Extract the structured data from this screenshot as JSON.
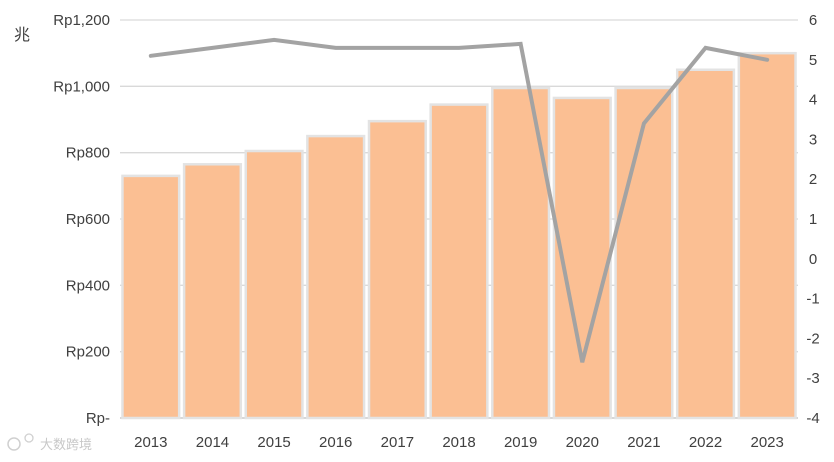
{
  "chart_data": {
    "type": "bar+line",
    "categories": [
      "2013",
      "2014",
      "2015",
      "2016",
      "2017",
      "2018",
      "2019",
      "2020",
      "2021",
      "2022",
      "2023"
    ],
    "series": [
      {
        "type": "bar",
        "axis": "left",
        "color": "#fbbf93",
        "values": [
          730,
          765,
          805,
          850,
          895,
          945,
          995,
          965,
          995,
          1050,
          1100
        ]
      },
      {
        "type": "line",
        "axis": "right",
        "color": "#a3a3a3",
        "values": [
          5.1,
          5.3,
          5.5,
          5.3,
          5.3,
          5.3,
          5.4,
          -2.6,
          3.4,
          5.3,
          5.0
        ]
      }
    ],
    "y_left": {
      "ylim": [
        0,
        1200
      ],
      "ticks": [
        0,
        200,
        400,
        600,
        800,
        1000,
        1200
      ],
      "tick_labels": [
        "Rp-",
        "Rp200",
        "Rp400",
        "Rp600",
        "Rp800",
        "Rp1,000",
        "Rp1,200"
      ],
      "unit_label": "兆"
    },
    "y_right": {
      "ylim": [
        -4,
        6
      ],
      "ticks": [
        -4,
        -3,
        -2,
        -1,
        0,
        1,
        2,
        3,
        4,
        5,
        6
      ],
      "tick_labels": [
        "-4",
        "-3",
        "-2",
        "-1",
        "0",
        "1",
        "2",
        "3",
        "4",
        "5",
        "6"
      ]
    },
    "grid": true,
    "legend": "none"
  },
  "watermark": {
    "text": "大数跨境"
  }
}
